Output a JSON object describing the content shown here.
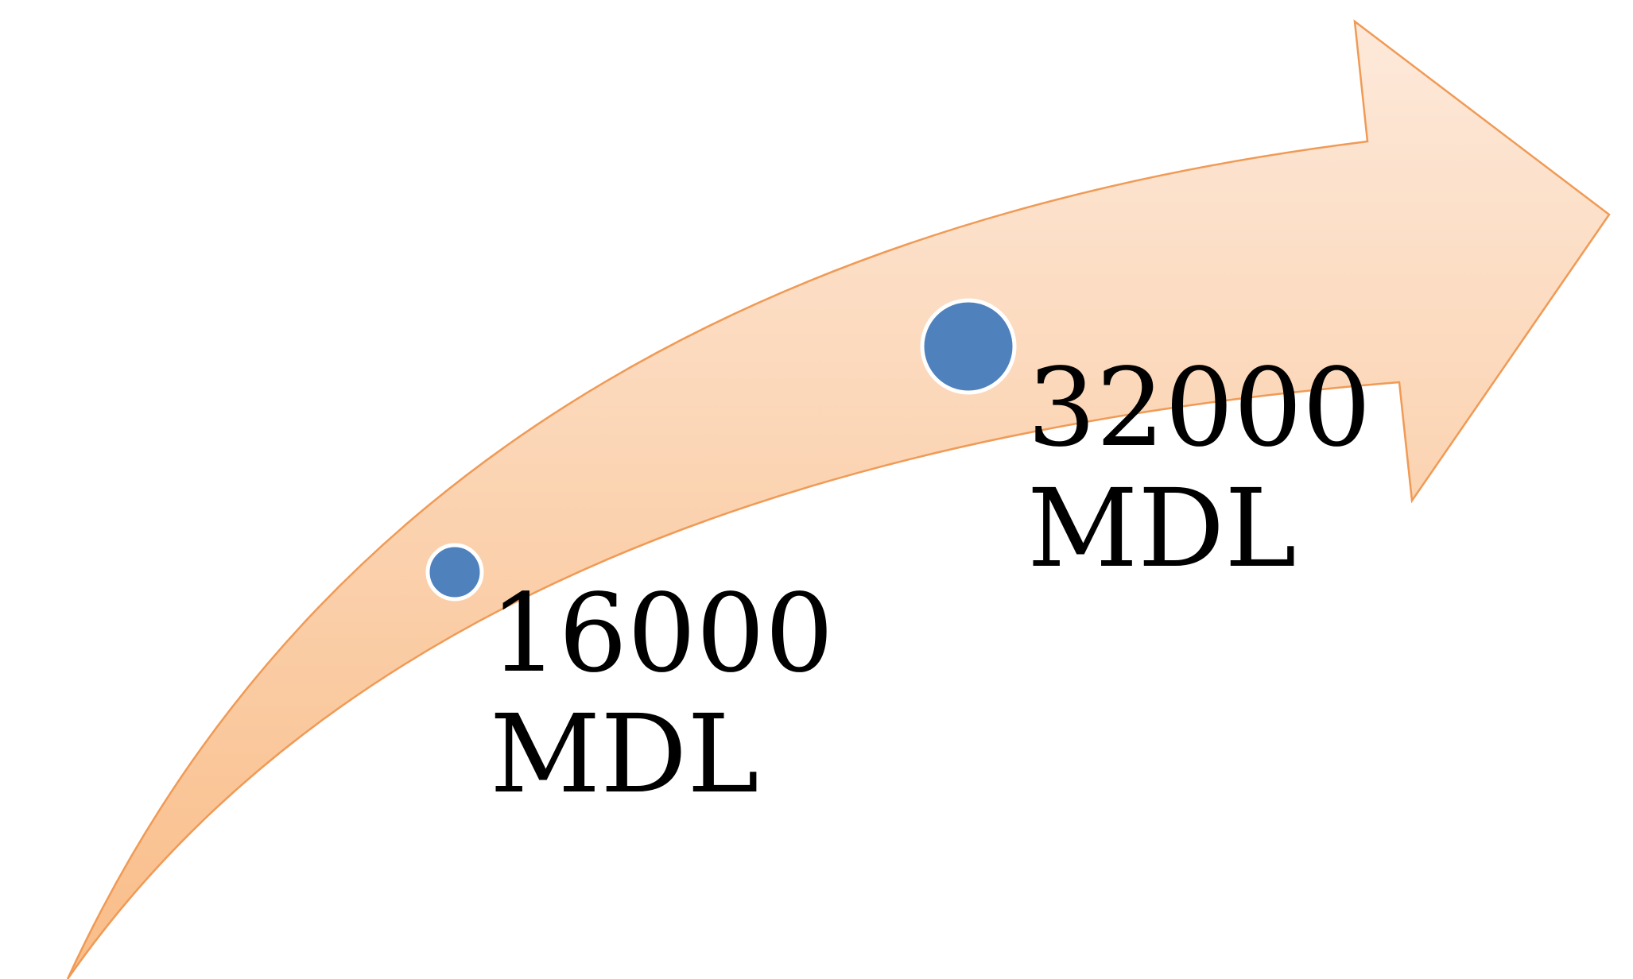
{
  "colors": {
    "arrow_fill_light": "#FDE7D5",
    "arrow_fill_dark": "#F9BF8C",
    "arrow_stroke": "#F09A55",
    "marker_fill": "#4F81BD",
    "marker_stroke": "#FFFFFF",
    "text": "#000000"
  },
  "milestones": [
    {
      "value": "16000",
      "unit": "MDL",
      "icon": "circle-marker"
    },
    {
      "value": "32000",
      "unit": "MDL",
      "icon": "circle-marker"
    }
  ]
}
